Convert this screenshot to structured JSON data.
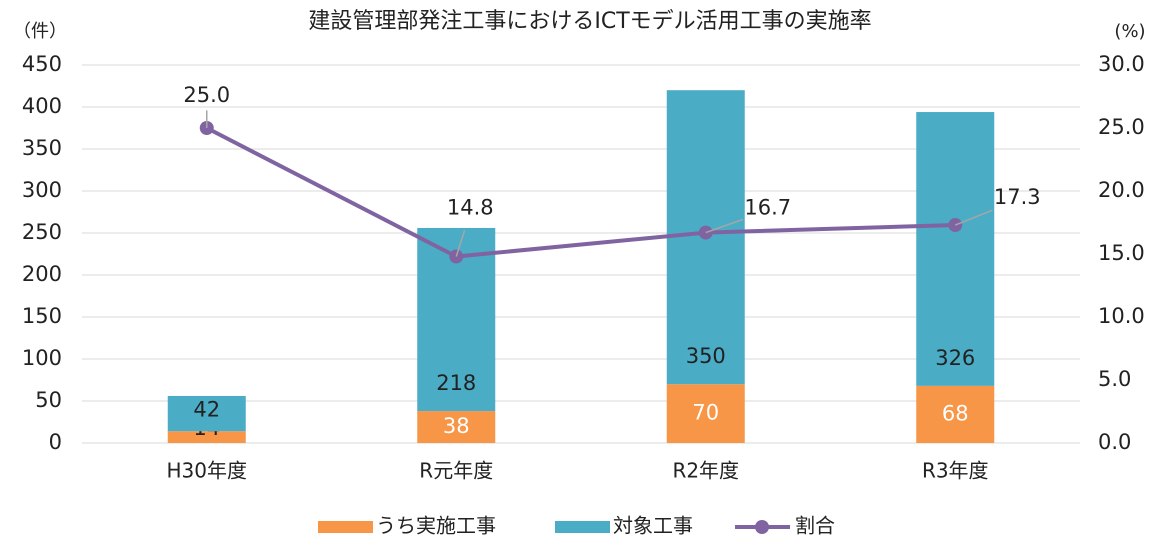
{
  "chart_data": {
    "type": "bar",
    "title": "建設管理部発注工事におけるICTモデル活用工事の実施率",
    "y_label": "（件）",
    "y2_label": "(%)",
    "categories": [
      "H30年度",
      "R元年度",
      "R2年度",
      "R3年度"
    ],
    "stacked": true,
    "series": [
      {
        "name": "うち実施工事",
        "color": "#f79646",
        "values": [
          14,
          38,
          70,
          68
        ]
      },
      {
        "name": "対象工事",
        "color": "#4bacc6",
        "values": [
          42,
          218,
          350,
          326
        ]
      },
      {
        "name": "割合",
        "type": "line",
        "axis": "y2",
        "color": "#8064a2",
        "values": [
          25.0,
          14.8,
          16.7,
          17.3
        ],
        "value_labels": [
          "25.0",
          "14.8",
          "16.7",
          "17.3"
        ]
      }
    ],
    "ylim": [
      0,
      450
    ],
    "yticks": [
      0,
      50,
      100,
      150,
      200,
      250,
      300,
      350,
      400,
      450
    ],
    "y2lim": [
      0,
      30
    ],
    "y2ticks": [
      {
        "value": 0,
        "label": "0.0"
      },
      {
        "value": 5,
        "label": "5.0"
      },
      {
        "value": 10,
        "label": "10.0"
      },
      {
        "value": 15,
        "label": "15.0"
      },
      {
        "value": 20,
        "label": "20.0"
      },
      {
        "value": 25,
        "label": "25.0"
      },
      {
        "value": 30,
        "label": "30.0"
      }
    ],
    "grid": true,
    "legend": "bottom"
  }
}
